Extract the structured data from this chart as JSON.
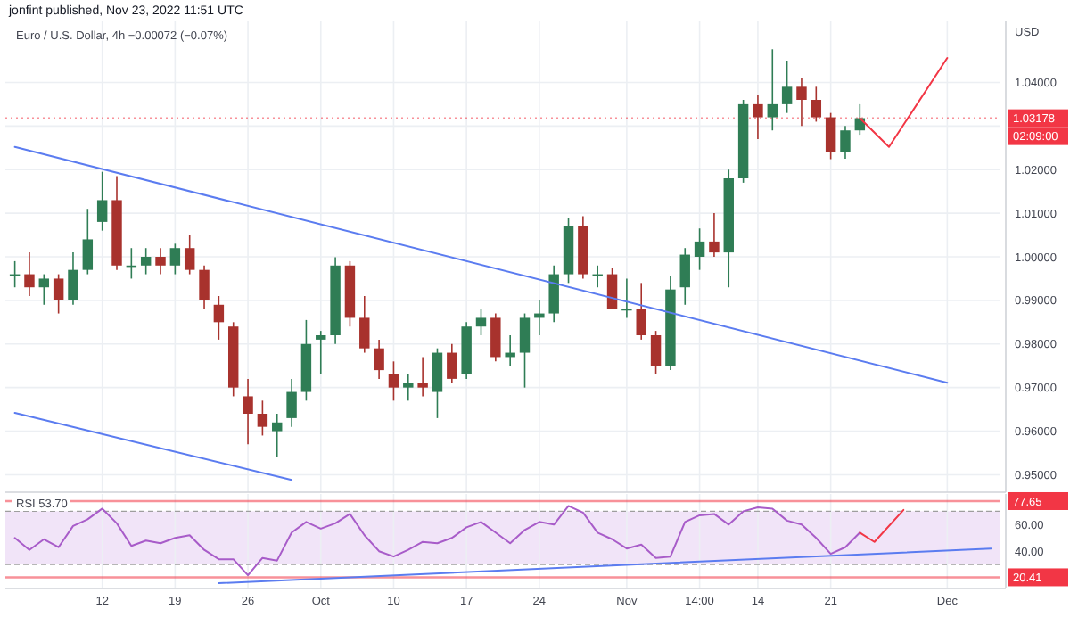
{
  "chart_data": [
    {
      "type": "candlestick",
      "title": "jonfint published, Nov 23, 2022 11:51 UTC",
      "subtitle": "Euro / U.S. Dollar, 4h −0.00072 (−0.07%)",
      "ylabel": "USD",
      "categories": [
        null,
        null,
        null,
        null,
        null,
        null,
        null,
        null,
        null,
        null,
        null,
        null,
        null,
        null,
        null,
        null,
        null,
        null,
        null,
        null,
        null,
        null,
        null,
        null,
        null,
        null,
        null,
        null,
        null,
        null,
        null,
        null,
        null,
        null,
        null,
        null,
        null,
        null,
        null,
        null,
        null,
        null,
        null,
        null,
        null,
        null,
        null,
        null,
        null,
        null,
        null,
        null,
        null,
        null,
        null,
        null,
        null,
        null,
        null,
        null,
        null,
        null,
        null,
        null,
        null,
        null,
        null,
        null
      ],
      "ohlc": [
        [
          0.9955,
          0.999,
          0.993,
          0.996
        ],
        [
          0.996,
          1.001,
          0.991,
          0.993
        ],
        [
          0.993,
          0.996,
          0.989,
          0.995
        ],
        [
          0.995,
          0.996,
          0.987,
          0.99
        ],
        [
          0.99,
          1.001,
          0.989,
          0.997
        ],
        [
          0.997,
          1.011,
          0.996,
          1.004
        ],
        [
          1.008,
          1.0195,
          1.006,
          1.013
        ],
        [
          1.013,
          1.0185,
          0.997,
          0.998
        ],
        [
          0.998,
          1.002,
          0.995,
          0.998
        ],
        [
          0.998,
          1.002,
          0.996,
          1.0
        ],
        [
          1.0,
          1.002,
          0.996,
          0.998
        ],
        [
          0.998,
          1.003,
          0.996,
          1.002
        ],
        [
          1.002,
          1.005,
          0.996,
          0.997
        ],
        [
          0.997,
          0.998,
          0.988,
          0.99
        ],
        [
          0.989,
          0.991,
          0.981,
          0.985
        ],
        [
          0.984,
          0.985,
          0.968,
          0.97
        ],
        [
          0.968,
          0.972,
          0.957,
          0.964
        ],
        [
          0.964,
          0.967,
          0.959,
          0.961
        ],
        [
          0.96,
          0.964,
          0.954,
          0.962
        ],
        [
          0.963,
          0.972,
          0.961,
          0.969
        ],
        [
          0.969,
          0.9855,
          0.967,
          0.98
        ],
        [
          0.981,
          0.983,
          0.973,
          0.982
        ],
        [
          0.982,
          0.9999,
          0.98,
          0.998
        ],
        [
          0.998,
          0.999,
          0.984,
          0.986
        ],
        [
          0.986,
          0.991,
          0.978,
          0.979
        ],
        [
          0.979,
          0.981,
          0.972,
          0.974
        ],
        [
          0.973,
          0.976,
          0.967,
          0.97
        ],
        [
          0.97,
          0.973,
          0.967,
          0.971
        ],
        [
          0.971,
          0.977,
          0.968,
          0.97
        ],
        [
          0.969,
          0.979,
          0.963,
          0.978
        ],
        [
          0.978,
          0.98,
          0.971,
          0.972
        ],
        [
          0.973,
          0.985,
          0.972,
          0.984
        ],
        [
          0.984,
          0.988,
          0.982,
          0.986
        ],
        [
          0.986,
          0.987,
          0.976,
          0.977
        ],
        [
          0.977,
          0.982,
          0.975,
          0.978
        ],
        [
          0.978,
          0.987,
          0.97,
          0.986
        ],
        [
          0.986,
          0.99,
          0.982,
          0.987
        ],
        [
          0.987,
          0.998,
          0.985,
          0.996
        ],
        [
          0.996,
          1.009,
          0.994,
          1.007
        ],
        [
          1.007,
          1.0093,
          0.995,
          0.996
        ],
        [
          0.996,
          0.998,
          0.993,
          0.996
        ],
        [
          0.996,
          0.9975,
          0.988,
          0.988
        ],
        [
          0.988,
          0.995,
          0.986,
          0.988
        ],
        [
          0.988,
          0.994,
          0.981,
          0.982
        ],
        [
          0.982,
          0.983,
          0.973,
          0.975
        ],
        [
          0.975,
          0.9955,
          0.974,
          0.9925
        ],
        [
          0.993,
          1.002,
          0.989,
          1.0005
        ],
        [
          1.0,
          1.0065,
          0.997,
          1.0035
        ],
        [
          1.0035,
          1.01,
          1.0,
          1.001
        ],
        [
          1.001,
          1.02,
          0.993,
          1.018
        ],
        [
          1.018,
          1.036,
          1.017,
          1.035
        ],
        [
          1.035,
          1.037,
          1.027,
          1.032
        ],
        [
          1.032,
          1.0476,
          1.029,
          1.035
        ],
        [
          1.035,
          1.045,
          1.033,
          1.039
        ],
        [
          1.039,
          1.041,
          1.03,
          1.036
        ],
        [
          1.036,
          1.039,
          1.031,
          1.032
        ],
        [
          1.032,
          1.033,
          1.0224,
          1.024
        ],
        [
          1.024,
          1.03,
          1.0225,
          1.029
        ],
        [
          1.029,
          1.035,
          1.028,
          1.0318
        ],
        null,
        null,
        null,
        null,
        null,
        null,
        null,
        null,
        null
      ],
      "series": [
        {
          "type": "line",
          "color": "#5b7cf0",
          "values": [
            1.0252,
            null,
            null,
            null,
            null,
            null,
            null,
            null,
            null,
            null,
            null,
            null,
            null,
            null,
            null,
            null,
            null,
            null,
            null,
            null,
            null,
            null,
            null,
            null,
            null,
            null,
            null,
            null,
            null,
            null,
            null,
            null,
            null,
            null,
            null,
            null,
            null,
            null,
            null,
            null,
            null,
            null,
            null,
            null,
            null,
            null,
            null,
            null,
            null,
            null,
            null,
            null,
            null,
            null,
            null,
            null,
            null,
            null,
            null,
            null,
            null,
            null,
            null,
            null,
            0.9711,
            null,
            null,
            null
          ]
        },
        {
          "type": "line",
          "color": "#5b7cf0",
          "values": [
            0.9642,
            null,
            null,
            null,
            null,
            null,
            null,
            null,
            null,
            null,
            null,
            null,
            null,
            null,
            null,
            null,
            null,
            null,
            null,
            0.9488,
            null,
            null,
            null,
            null,
            null,
            null,
            null,
            null,
            null,
            null,
            null,
            null,
            null,
            null,
            null,
            null,
            null,
            null,
            null,
            null,
            null,
            null,
            null,
            null,
            null,
            null,
            null,
            null,
            null,
            null,
            null,
            null,
            null,
            null,
            null,
            null,
            null,
            null,
            null,
            null,
            null,
            null,
            null,
            null,
            null,
            null,
            null,
            null
          ]
        },
        {
          "type": "line",
          "color": "#f23645",
          "values": [
            null,
            null,
            null,
            null,
            null,
            null,
            null,
            null,
            null,
            null,
            null,
            null,
            null,
            null,
            null,
            null,
            null,
            null,
            null,
            null,
            null,
            null,
            null,
            null,
            null,
            null,
            null,
            null,
            null,
            null,
            null,
            null,
            null,
            null,
            null,
            null,
            null,
            null,
            null,
            null,
            null,
            null,
            null,
            null,
            null,
            null,
            null,
            null,
            null,
            null,
            null,
            null,
            null,
            null,
            null,
            null,
            null,
            null,
            1.0318,
            null,
            1.0252,
            null,
            null,
            null,
            1.0456,
            null,
            null,
            null
          ]
        }
      ],
      "ylim": [
        0.946,
        1.054
      ],
      "yticks": [
        {
          "value": 0.95,
          "label": "0.95000"
        },
        {
          "value": 0.96,
          "label": "0.96000"
        },
        {
          "value": 0.97,
          "label": "0.97000"
        },
        {
          "value": 0.98,
          "label": "0.98000"
        },
        {
          "value": 0.99,
          "label": "0.99000"
        },
        {
          "value": 1.0,
          "label": "1.00000"
        },
        {
          "value": 1.01,
          "label": "1.01000"
        },
        {
          "value": 1.02,
          "label": "1.02000"
        },
        {
          "value": 1.03,
          "label": null
        },
        {
          "value": 1.04,
          "label": "1.04000"
        }
      ],
      "ref_lines": [
        {
          "axis": "y",
          "value": 1.03178,
          "label": "1.03178",
          "color": "#f23645",
          "line_style": "dotted"
        }
      ],
      "annotations": [
        "02:09:00"
      ],
      "grid": true,
      "tick_labels": "y"
    },
    {
      "type": "line",
      "title": "RSI 53.70",
      "categories": [
        null,
        null,
        null,
        null,
        null,
        null,
        "12",
        null,
        null,
        null,
        null,
        "19",
        null,
        null,
        null,
        null,
        "26",
        null,
        null,
        null,
        null,
        "Oct",
        null,
        null,
        null,
        null,
        "10",
        null,
        null,
        null,
        null,
        "17",
        null,
        null,
        null,
        null,
        "24",
        null,
        null,
        null,
        null,
        null,
        "Nov",
        null,
        null,
        null,
        null,
        "14:00",
        null,
        null,
        null,
        "14",
        null,
        null,
        null,
        null,
        "21",
        null,
        null,
        null,
        null,
        null,
        null,
        null,
        "Dec",
        null,
        null,
        null
      ],
      "series": [
        {
          "color": "#a85cc9",
          "values": [
            50,
            41,
            49,
            43,
            59,
            64,
            72,
            61,
            44,
            48,
            46,
            50,
            52,
            41,
            34,
            34,
            22,
            35,
            33,
            54,
            62,
            57,
            61,
            68,
            52,
            40,
            36,
            41,
            47,
            46,
            50,
            58,
            62,
            54,
            46,
            56,
            62,
            60,
            74,
            69,
            54,
            49,
            42,
            45,
            35,
            36,
            62,
            67,
            68,
            60,
            70,
            73,
            72,
            63,
            60,
            50,
            38,
            43,
            54,
            null,
            null,
            null,
            null,
            null,
            null,
            null,
            null,
            null
          ]
        },
        {
          "color": "#5b7cf0",
          "values": [
            null,
            null,
            null,
            null,
            null,
            null,
            null,
            null,
            null,
            null,
            null,
            null,
            null,
            null,
            16,
            null,
            null,
            null,
            null,
            null,
            null,
            null,
            null,
            null,
            null,
            null,
            null,
            null,
            null,
            null,
            null,
            null,
            null,
            null,
            null,
            null,
            null,
            null,
            null,
            null,
            null,
            null,
            null,
            null,
            null,
            null,
            null,
            null,
            null,
            null,
            null,
            null,
            null,
            null,
            null,
            null,
            null,
            null,
            null,
            null,
            null,
            null,
            null,
            null,
            null,
            null,
            null,
            42
          ]
        },
        {
          "color": "#f23645",
          "values": [
            null,
            null,
            null,
            null,
            null,
            null,
            null,
            null,
            null,
            null,
            null,
            null,
            null,
            null,
            null,
            null,
            null,
            null,
            null,
            null,
            null,
            null,
            null,
            null,
            null,
            null,
            null,
            null,
            null,
            null,
            null,
            null,
            null,
            null,
            null,
            null,
            null,
            null,
            null,
            null,
            null,
            null,
            null,
            null,
            null,
            null,
            null,
            null,
            null,
            null,
            null,
            null,
            null,
            null,
            null,
            null,
            null,
            null,
            54,
            47,
            null,
            71,
            null,
            null,
            null,
            null,
            null,
            null
          ]
        }
      ],
      "ylim": [
        12,
        83
      ],
      "yticks": [
        {
          "value": 40,
          "label": "40.00"
        },
        {
          "value": 60,
          "label": "60.00"
        }
      ],
      "bands": [
        {
          "axis": "y",
          "from": 30,
          "to": 70,
          "color": "#f1e4f8"
        }
      ],
      "ref_lines": [
        {
          "axis": "y",
          "value": 77.65,
          "label": "77.65",
          "color": "#f23645",
          "line_style": "solid"
        },
        {
          "axis": "y",
          "value": 20.41,
          "label": "20.41",
          "color": "#f23645",
          "line_style": "solid"
        },
        {
          "axis": "y",
          "value": 70,
          "label": null,
          "color": "#9e9e9e",
          "line_style": "dashed"
        },
        {
          "axis": "y",
          "value": 30,
          "label": null,
          "color": "#9e9e9e",
          "line_style": "dashed"
        }
      ],
      "grid": "x"
    }
  ]
}
